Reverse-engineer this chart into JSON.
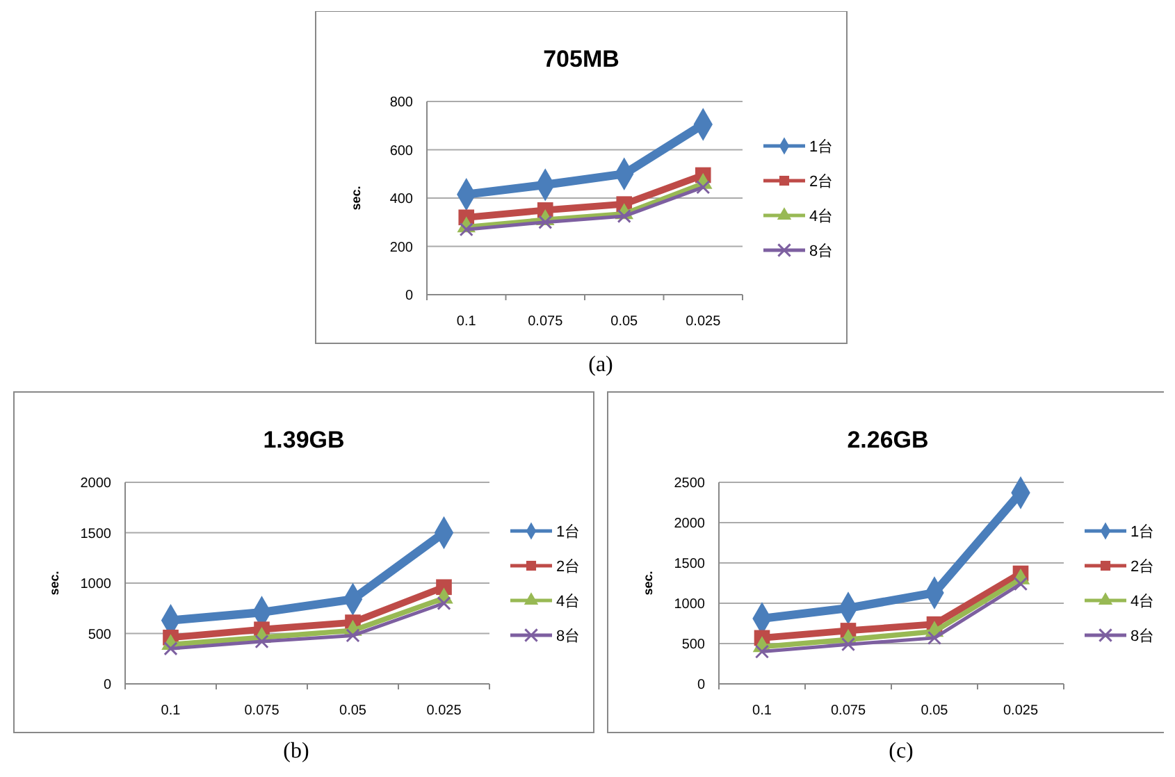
{
  "chart_data": [
    {
      "type": "line",
      "title": "705MB",
      "ylabel": "sec.",
      "categories": [
        "0.1",
        "0.075",
        "0.05",
        "0.025"
      ],
      "ylim": [
        0,
        800
      ],
      "yticks": [
        0,
        200,
        400,
        600,
        800
      ],
      "grid": "y",
      "legend": "right",
      "annotations": [
        "(a)"
      ],
      "series": [
        {
          "name": "1台",
          "color": "#4a7ebb",
          "marker": "diamond",
          "values": [
            415,
            455,
            500,
            705
          ]
        },
        {
          "name": "2台",
          "color": "#be4b48",
          "marker": "square",
          "values": [
            320,
            350,
            375,
            495
          ]
        },
        {
          "name": "4台",
          "color": "#98b954",
          "marker": "triangle",
          "values": [
            280,
            310,
            335,
            460
          ]
        },
        {
          "name": "8台",
          "color": "#7d5fa0",
          "marker": "cross",
          "values": [
            270,
            300,
            325,
            445
          ]
        }
      ]
    },
    {
      "type": "line",
      "title": "1.39GB",
      "ylabel": "sec.",
      "categories": [
        "0.1",
        "0.075",
        "0.05",
        "0.025"
      ],
      "ylim": [
        0,
        2000
      ],
      "yticks": [
        0,
        500,
        1000,
        1500,
        2000
      ],
      "grid": "y",
      "legend": "right",
      "annotations": [
        "(b)"
      ],
      "series": [
        {
          "name": "1台",
          "color": "#4a7ebb",
          "marker": "diamond",
          "values": [
            630,
            710,
            840,
            1500
          ]
        },
        {
          "name": "2台",
          "color": "#be4b48",
          "marker": "square",
          "values": [
            460,
            540,
            610,
            960
          ]
        },
        {
          "name": "4台",
          "color": "#98b954",
          "marker": "triangle",
          "values": [
            390,
            460,
            530,
            850
          ]
        },
        {
          "name": "8台",
          "color": "#7d5fa0",
          "marker": "cross",
          "values": [
            350,
            420,
            480,
            800
          ]
        }
      ]
    },
    {
      "type": "line",
      "title": "2.26GB",
      "ylabel": "sec.",
      "categories": [
        "0.1",
        "0.075",
        "0.05",
        "0.025"
      ],
      "ylim": [
        0,
        2500
      ],
      "yticks": [
        0,
        500,
        1000,
        1500,
        2000,
        2500
      ],
      "grid": "y",
      "legend": "right",
      "annotations": [
        "(c)"
      ],
      "series": [
        {
          "name": "1台",
          "color": "#4a7ebb",
          "marker": "diamond",
          "values": [
            810,
            940,
            1130,
            2370
          ]
        },
        {
          "name": "2台",
          "color": "#be4b48",
          "marker": "square",
          "values": [
            570,
            660,
            740,
            1370
          ]
        },
        {
          "name": "4台",
          "color": "#98b954",
          "marker": "triangle",
          "values": [
            460,
            550,
            650,
            1300
          ]
        },
        {
          "name": "8台",
          "color": "#7d5fa0",
          "marker": "cross",
          "values": [
            400,
            490,
            570,
            1240
          ]
        }
      ]
    }
  ]
}
